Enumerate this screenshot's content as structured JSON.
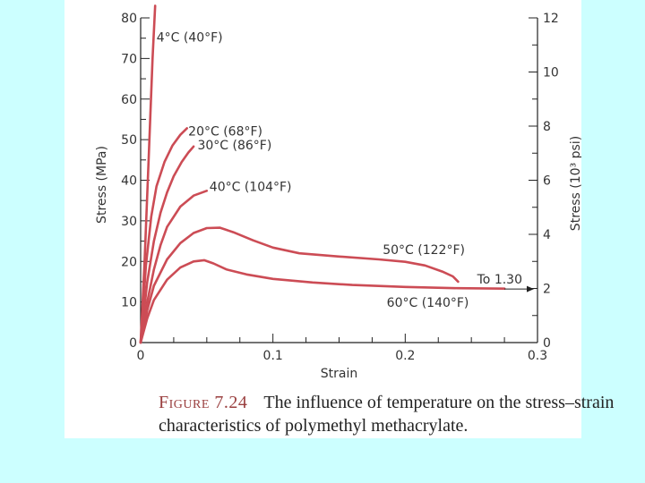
{
  "colors": {
    "background": "#ccffff",
    "curve": "#cc4c55",
    "axis": "#222222"
  },
  "caption": {
    "label": "Figure 7.24",
    "text": "The influence of temperature on the stress–strain characteristics of polymethyl methacrylate."
  },
  "chart_data": {
    "type": "line",
    "title": "",
    "xlabel": "Strain",
    "ylabel": "Stress (MPa)",
    "y2label": "Stress (10³ psi)",
    "xlim": [
      0,
      0.3
    ],
    "ylim": [
      0,
      80
    ],
    "y2lim": [
      0,
      12
    ],
    "xticks": [
      "0",
      "0.1",
      "0.2",
      "0.3"
    ],
    "xtick_values": [
      0,
      0.1,
      0.2,
      0.3
    ],
    "yticks": [
      "0",
      "10",
      "20",
      "30",
      "40",
      "50",
      "60",
      "70",
      "80"
    ],
    "ytick_values": [
      0,
      10,
      20,
      30,
      40,
      50,
      60,
      70,
      80
    ],
    "y2ticks": [
      "0",
      "2",
      "4",
      "6",
      "8",
      "10",
      "12"
    ],
    "y2tick_values": [
      0,
      2,
      4,
      6,
      8,
      10,
      12
    ],
    "grid": false,
    "annotations": [
      {
        "text": "To 1.30",
        "x": 0.275,
        "y": 13.2
      }
    ],
    "series": [
      {
        "name": "4°C (40°F)",
        "label_at": [
          0.012,
          74.2
        ],
        "x": [
          0,
          0.003,
          0.006,
          0.009,
          0.011
        ],
        "y": [
          0,
          20,
          45,
          70,
          83
        ]
      },
      {
        "name": "20°C (68°F)",
        "label_at": [
          0.036,
          51.0
        ],
        "x": [
          0,
          0.004,
          0.008,
          0.012,
          0.018,
          0.024,
          0.03,
          0.035
        ],
        "y": [
          0,
          19,
          31,
          38.5,
          44.5,
          48.5,
          51.2,
          52.8
        ]
      },
      {
        "name": "30°C (86°F)",
        "label_at": [
          0.043,
          47.6
        ],
        "x": [
          0,
          0.005,
          0.01,
          0.015,
          0.02,
          0.025,
          0.031,
          0.036,
          0.04
        ],
        "y": [
          0,
          15,
          25,
          32,
          37,
          41,
          44.5,
          46.8,
          48.3
        ]
      },
      {
        "name": "40°C (104°F)",
        "label_at": [
          0.052,
          37.4
        ],
        "x": [
          0,
          0.005,
          0.01,
          0.015,
          0.02,
          0.03,
          0.04,
          0.05
        ],
        "y": [
          0,
          10,
          18,
          24,
          28.5,
          33.5,
          36.2,
          37.4
        ]
      },
      {
        "name": "50°C (122°F)",
        "label_at": [
          0.183,
          21.8
        ],
        "x": [
          0,
          0.005,
          0.01,
          0.02,
          0.03,
          0.04,
          0.05,
          0.06,
          0.07,
          0.085,
          0.1,
          0.12,
          0.15,
          0.18,
          0.2,
          0.215,
          0.228,
          0.236,
          0.24
        ],
        "y": [
          0,
          8,
          14,
          20.5,
          24.5,
          27,
          28.2,
          28.3,
          27.2,
          25.2,
          23.4,
          22,
          21.2,
          20.5,
          19.9,
          19,
          17.5,
          16.3,
          15
        ]
      },
      {
        "name": "60°C (140°F)",
        "label_at": [
          0.186,
          8.8
        ],
        "x": [
          0,
          0.005,
          0.01,
          0.02,
          0.03,
          0.04,
          0.048,
          0.055,
          0.065,
          0.08,
          0.1,
          0.13,
          0.16,
          0.2,
          0.24,
          0.275
        ],
        "y": [
          0,
          6,
          10.5,
          15.5,
          18.5,
          20,
          20.3,
          19.5,
          18,
          16.8,
          15.7,
          14.8,
          14.2,
          13.7,
          13.4,
          13.3
        ]
      }
    ]
  }
}
